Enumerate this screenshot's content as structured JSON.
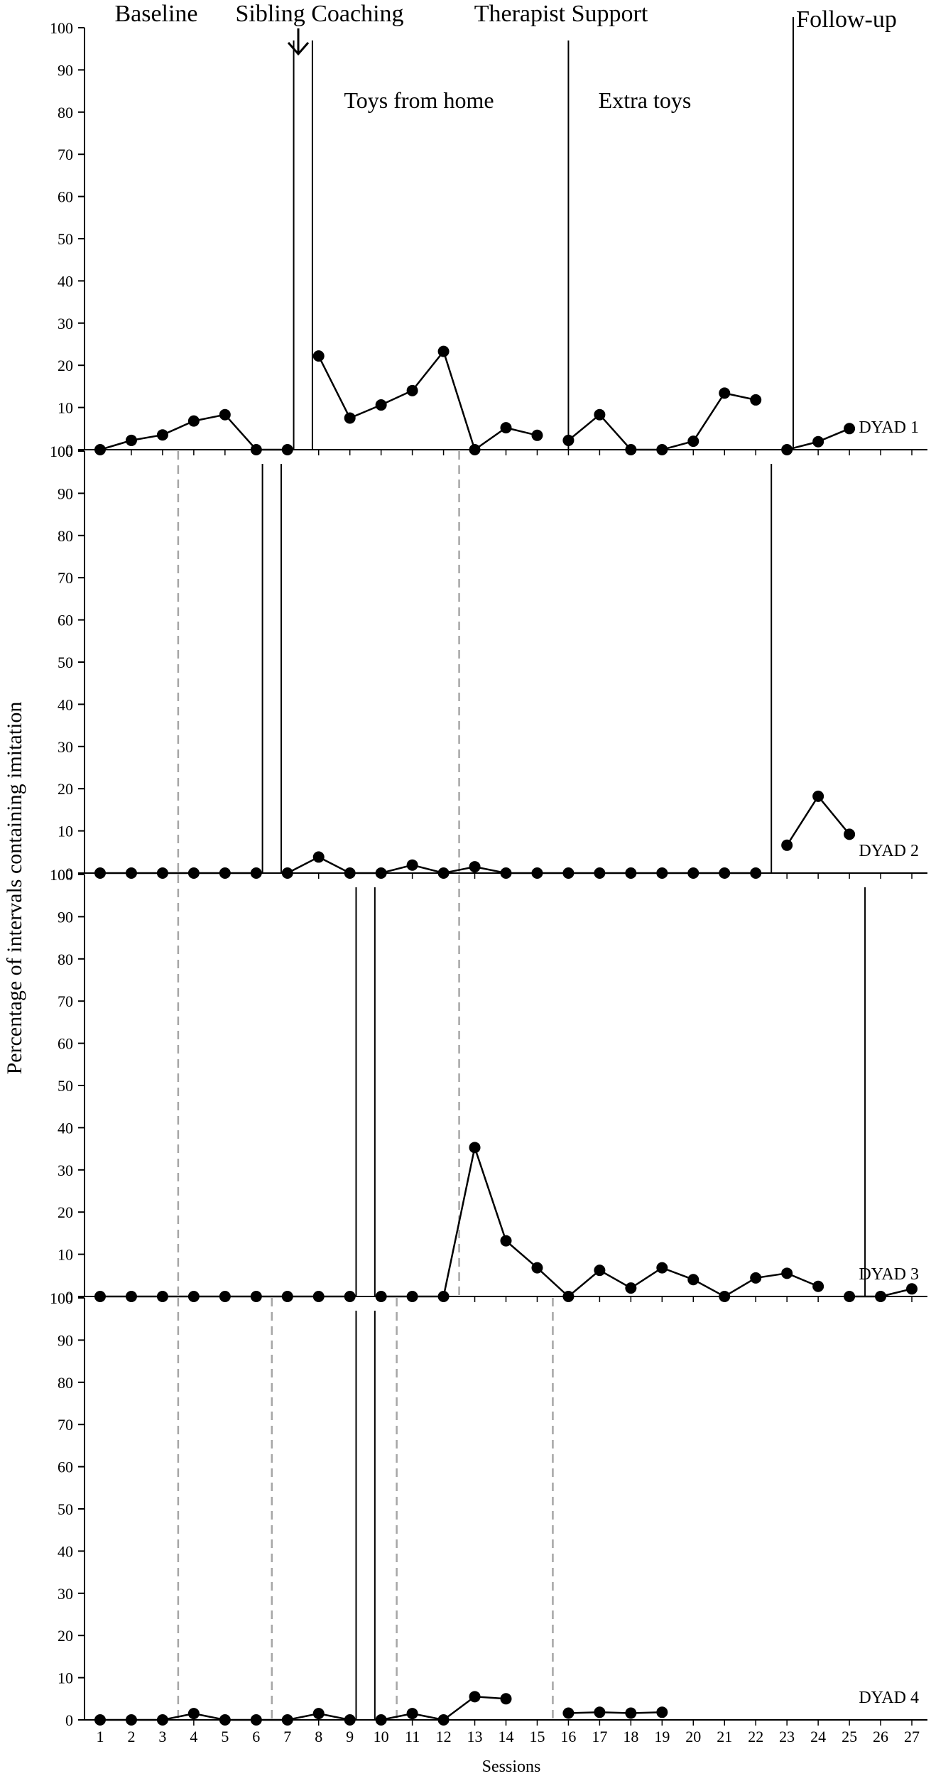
{
  "chart_data": {
    "type": "line",
    "ylabel": "Percentage of intervals containing imitation",
    "xlabel": "Sessions",
    "ylim": [
      0,
      100
    ],
    "yticks": [
      0,
      10,
      20,
      30,
      40,
      50,
      60,
      70,
      80,
      90,
      100
    ],
    "xticks": [
      1,
      2,
      3,
      4,
      5,
      6,
      7,
      8,
      9,
      10,
      11,
      12,
      13,
      14,
      15,
      16,
      17,
      18,
      19,
      20,
      21,
      22,
      23,
      24,
      25,
      26,
      27
    ],
    "xlim": [
      0.5,
      27.5
    ],
    "grid": false,
    "phase_labels": [
      "Baseline",
      "Sibling Coaching",
      "Therapist Support",
      "Follow-up"
    ],
    "sub_phase_labels": [
      "Toys from home",
      "Extra toys"
    ],
    "panels": [
      {
        "label": "DYAD 1",
        "solid_lines": [
          7.2,
          7.8,
          16,
          23.2
        ],
        "dashed_lines": [],
        "segments": [
          [
            [
              1,
              0
            ],
            [
              2,
              2.2
            ],
            [
              3,
              3.5
            ],
            [
              4,
              6.8
            ],
            [
              5,
              8.3
            ],
            [
              6,
              0
            ],
            [
              7,
              0
            ]
          ],
          [
            [
              8,
              22.2
            ],
            [
              9,
              7.5
            ],
            [
              10,
              10.6
            ],
            [
              11,
              14
            ],
            [
              12,
              23.3
            ],
            [
              13,
              0
            ],
            [
              14,
              5.2
            ],
            [
              15,
              3.4
            ]
          ],
          [
            [
              16,
              2.2
            ],
            [
              17,
              8.3
            ],
            [
              18,
              0
            ],
            [
              19,
              0
            ],
            [
              20,
              2
            ],
            [
              21,
              13.4
            ],
            [
              22,
              11.8
            ]
          ],
          [
            [
              23,
              0
            ],
            [
              24,
              1.9
            ],
            [
              25,
              5
            ]
          ]
        ]
      },
      {
        "label": "DYAD 2",
        "solid_lines": [
          6.2,
          6.8,
          22.5
        ],
        "dashed_lines": [
          3.5,
          12.5
        ],
        "segments": [
          [
            [
              1,
              0
            ],
            [
              2,
              0
            ],
            [
              3,
              0
            ],
            [
              4,
              0
            ],
            [
              5,
              0
            ],
            [
              6,
              0
            ]
          ],
          [
            [
              7,
              0
            ],
            [
              8,
              3.8
            ],
            [
              9,
              0
            ],
            [
              10,
              0
            ],
            [
              11,
              1.9
            ],
            [
              12,
              0
            ],
            [
              13,
              1.5
            ],
            [
              14,
              0
            ],
            [
              15,
              0
            ],
            [
              16,
              0
            ],
            [
              17,
              0
            ],
            [
              18,
              0
            ],
            [
              19,
              0
            ],
            [
              20,
              0
            ],
            [
              21,
              0
            ],
            [
              22,
              0
            ]
          ],
          [
            [
              23,
              6.6
            ],
            [
              24,
              18.2
            ],
            [
              25,
              9.2
            ]
          ]
        ]
      },
      {
        "label": "DYAD 3",
        "solid_lines": [
          9.2,
          9.8,
          25.5
        ],
        "dashed_lines": [
          3.5,
          12.5
        ],
        "segments": [
          [
            [
              1,
              0
            ],
            [
              2,
              0
            ],
            [
              3,
              0
            ],
            [
              4,
              0
            ],
            [
              5,
              0
            ],
            [
              6,
              0
            ],
            [
              7,
              0
            ],
            [
              8,
              0
            ],
            [
              9,
              0
            ]
          ],
          [
            [
              10,
              0
            ],
            [
              11,
              0
            ],
            [
              12,
              0
            ],
            [
              13,
              35.3
            ],
            [
              14,
              13.2
            ],
            [
              15,
              6.8
            ],
            [
              16,
              0
            ],
            [
              17,
              6.2
            ],
            [
              18,
              2
            ],
            [
              19,
              6.8
            ],
            [
              20,
              4
            ],
            [
              21,
              0
            ],
            [
              22,
              4.4
            ],
            [
              23,
              5.5
            ],
            [
              24,
              2.4
            ]
          ],
          [
            [
              25,
              0
            ],
            [
              26,
              0
            ],
            [
              27,
              1.8
            ]
          ]
        ]
      },
      {
        "label": "DYAD 4",
        "solid_lines": [
          9.2,
          9.8
        ],
        "dashed_lines": [
          3.5,
          6.5,
          10.5,
          15.5
        ],
        "segments": [
          [
            [
              1,
              0
            ],
            [
              2,
              0
            ],
            [
              3,
              0
            ],
            [
              4,
              1.5
            ],
            [
              5,
              0
            ],
            [
              6,
              0
            ],
            [
              7,
              0
            ],
            [
              8,
              1.5
            ],
            [
              9,
              0
            ]
          ],
          [
            [
              10,
              0
            ],
            [
              11,
              1.5
            ],
            [
              12,
              0
            ],
            [
              13,
              5.5
            ],
            [
              14,
              5
            ]
          ],
          [
            [
              16,
              1.6
            ],
            [
              17,
              1.8
            ],
            [
              18,
              1.6
            ],
            [
              19,
              1.8
            ]
          ]
        ]
      }
    ]
  }
}
